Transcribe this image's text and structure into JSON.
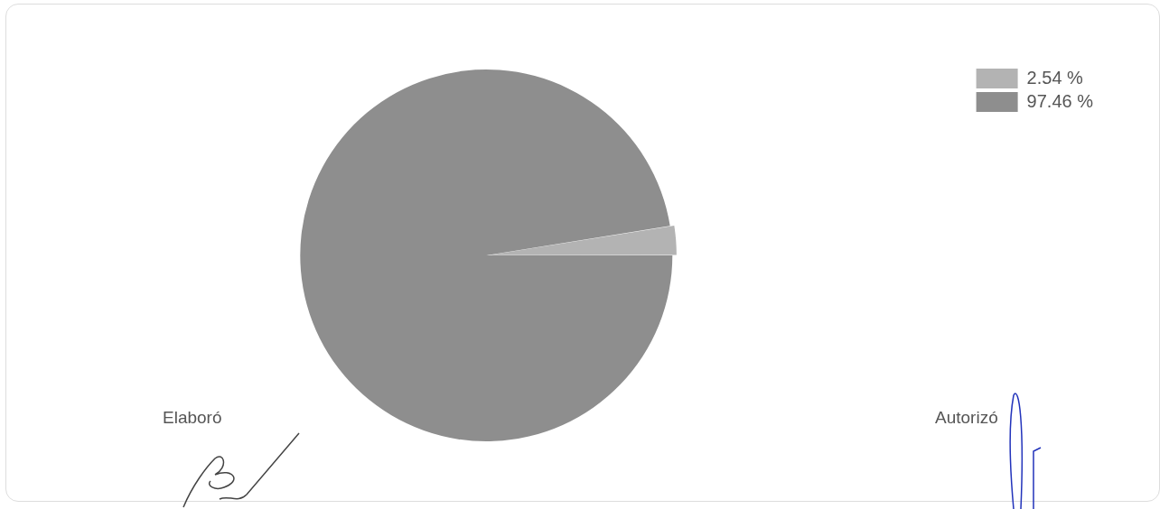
{
  "chart_data": {
    "type": "pie",
    "categories": [
      "2.54 %",
      "97.46 %"
    ],
    "values": [
      2.54,
      97.46
    ],
    "colors": [
      "#b3b3b3",
      "#8e8e8e"
    ],
    "legend": "top right",
    "annotations": [
      "Elaboró",
      "Autorizó"
    ]
  }
}
